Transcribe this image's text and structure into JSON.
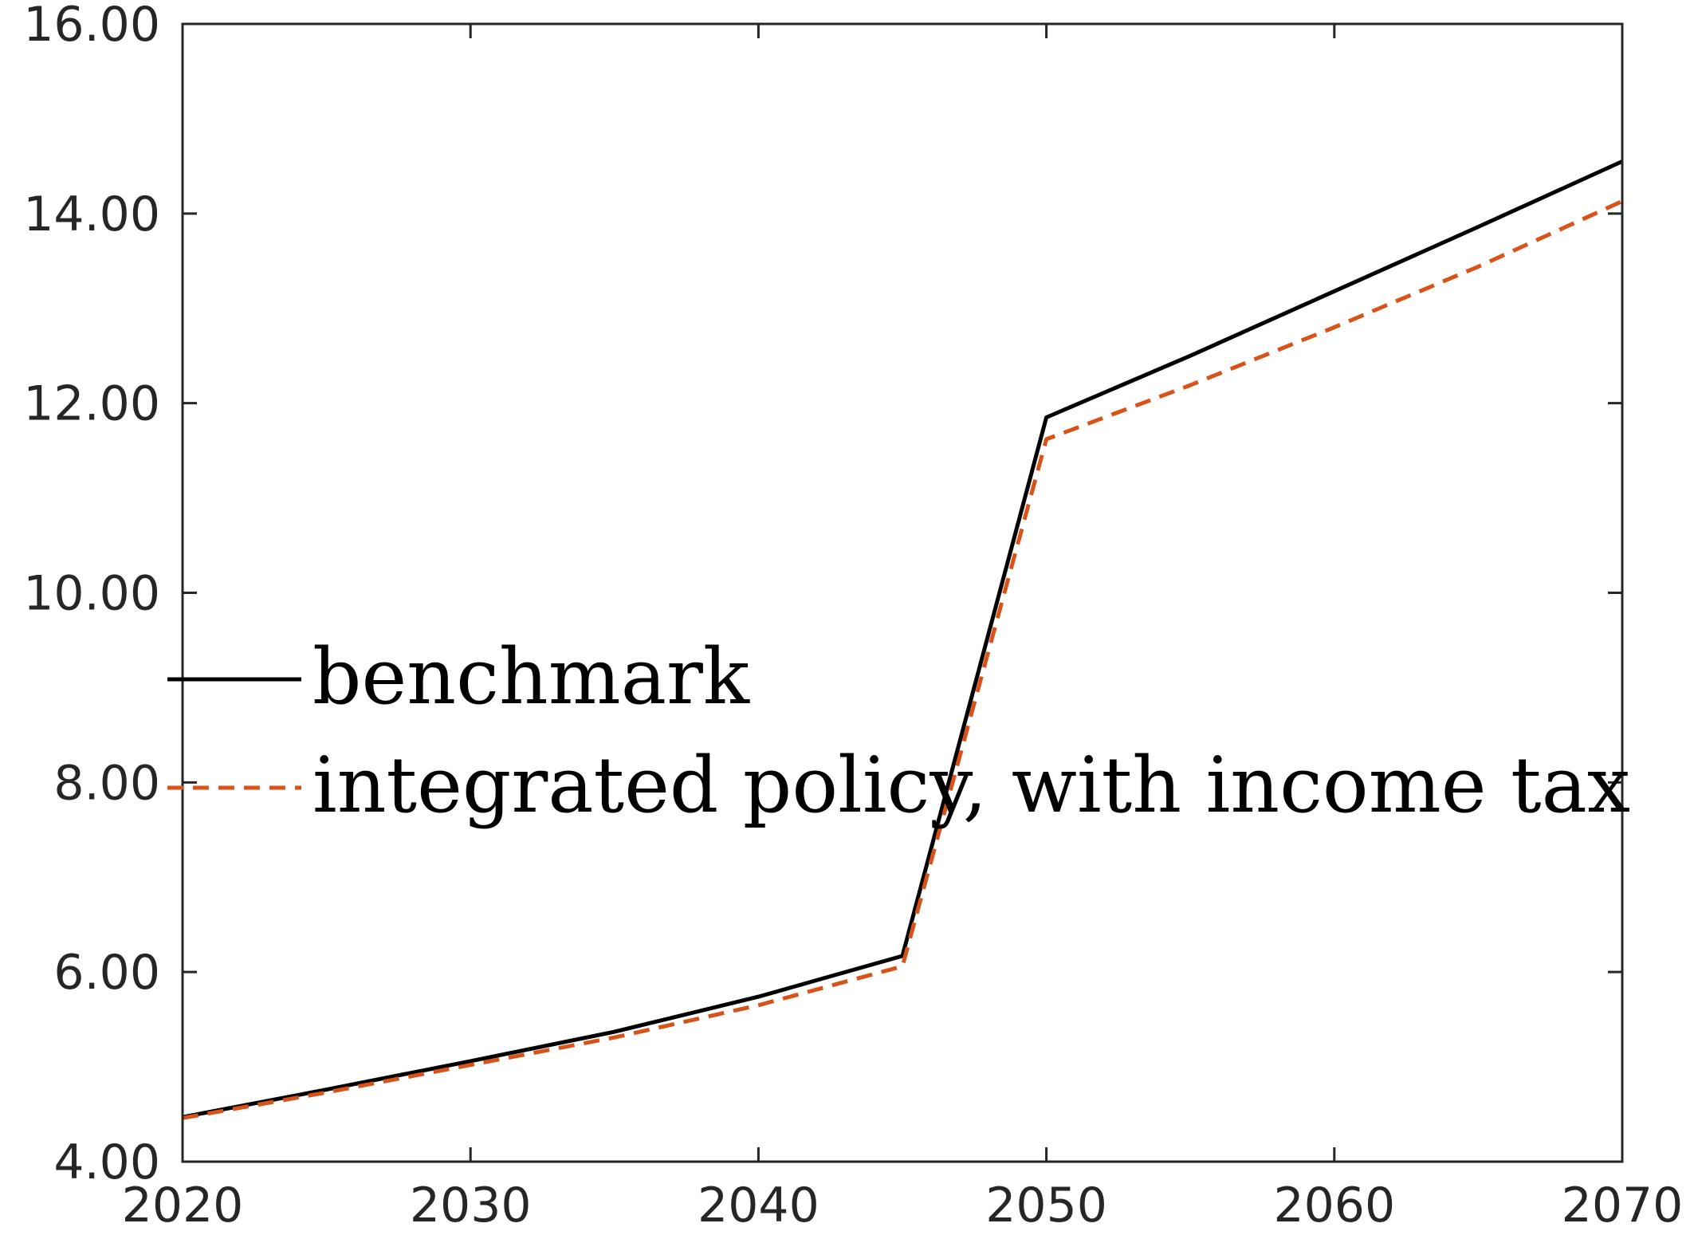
{
  "chart_data": {
    "type": "line",
    "title": "",
    "xlabel": "",
    "ylabel": "",
    "xlim": [
      2020,
      2070
    ],
    "ylim": [
      4,
      16
    ],
    "x_ticks": [
      2020,
      2030,
      2040,
      2050,
      2060,
      2070
    ],
    "x_tick_labels": [
      "2020",
      "2030",
      "2040",
      "2050",
      "2060",
      "2070"
    ],
    "y_ticks": [
      4,
      6,
      8,
      10,
      12,
      14,
      16
    ],
    "y_tick_labels": [
      "4.00",
      "6.00",
      "8.00",
      "10.00",
      "12.00",
      "14.00",
      "16.00"
    ],
    "grid": false,
    "legend_position": "middle-left",
    "series": [
      {
        "name": "benchmark",
        "color": "#000000",
        "style": "solid",
        "x": [
          2020,
          2025,
          2030,
          2035,
          2040,
          2045,
          2050,
          2055,
          2060,
          2065,
          2070
        ],
        "y": [
          4.47,
          4.76,
          5.06,
          5.37,
          5.74,
          6.17,
          11.85,
          12.5,
          13.18,
          13.86,
          14.55
        ]
      },
      {
        "name": "integrated policy, with income tax",
        "color": "#D95319",
        "style": "dashed",
        "x": [
          2020,
          2025,
          2030,
          2035,
          2040,
          2045,
          2050,
          2055,
          2060,
          2065,
          2070
        ],
        "y": [
          4.46,
          4.73,
          5.02,
          5.31,
          5.65,
          6.06,
          11.62,
          12.19,
          12.8,
          13.44,
          14.13
        ]
      }
    ]
  }
}
